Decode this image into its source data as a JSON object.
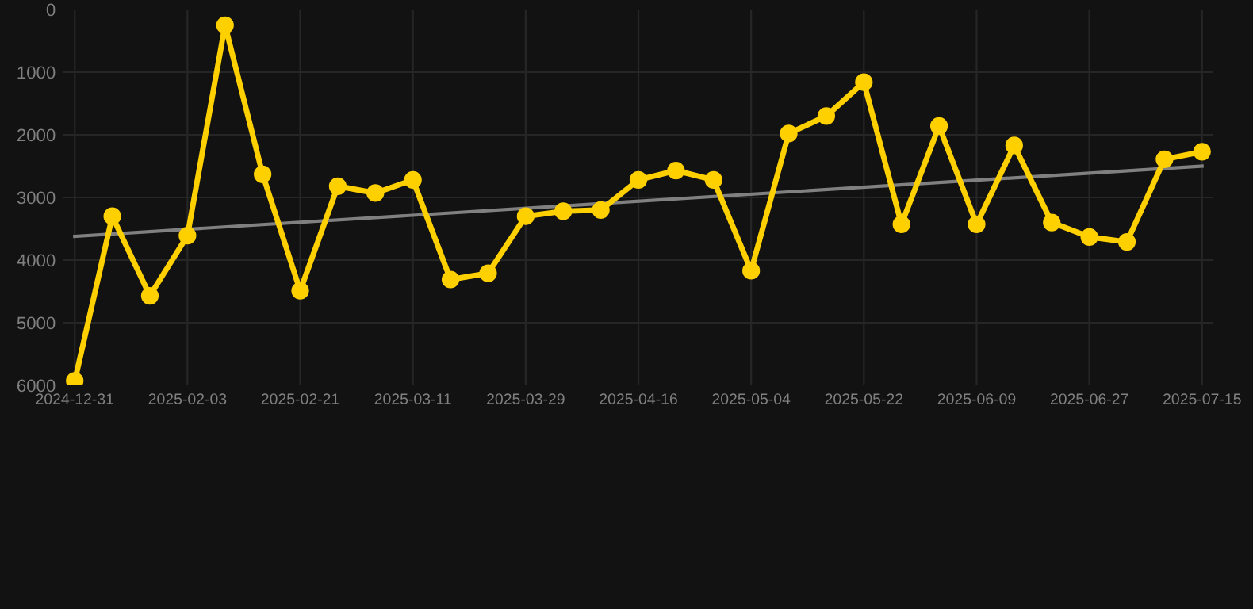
{
  "chart_data": {
    "type": "line",
    "categories": [
      "2024-12-31",
      null,
      null,
      "2025-02-03",
      null,
      null,
      "2025-02-21",
      null,
      null,
      "2025-03-11",
      null,
      null,
      "2025-03-29",
      null,
      null,
      "2025-04-16",
      null,
      null,
      "2025-05-04",
      null,
      null,
      "2025-05-22",
      null,
      null,
      "2025-06-09",
      null,
      null,
      "2025-06-27",
      null,
      null,
      "2025-07-15"
    ],
    "series": [
      {
        "color": "#ffd000",
        "marker": "circle",
        "values": [
          5930,
          3300,
          4570,
          3610,
          250,
          2630,
          4490,
          2820,
          2930,
          2720,
          4310,
          4210,
          3300,
          3220,
          3200,
          2720,
          2570,
          2720,
          4170,
          1980,
          1700,
          1160,
          3430,
          1860,
          3430,
          2170,
          3400,
          3630,
          3710,
          2390,
          2270
        ]
      },
      {
        "type": "line",
        "color": "#808080",
        "marker": "none",
        "values": [
          3620,
          null,
          null,
          null,
          null,
          null,
          null,
          null,
          null,
          null,
          null,
          null,
          null,
          null,
          null,
          null,
          null,
          null,
          null,
          null,
          null,
          null,
          null,
          null,
          null,
          null,
          null,
          null,
          null,
          null,
          2500
        ]
      }
    ],
    "ylim": [
      6000,
      0
    ],
    "yticks": [
      0,
      1000,
      2000,
      3000,
      4000,
      5000,
      6000
    ],
    "grid": true
  }
}
